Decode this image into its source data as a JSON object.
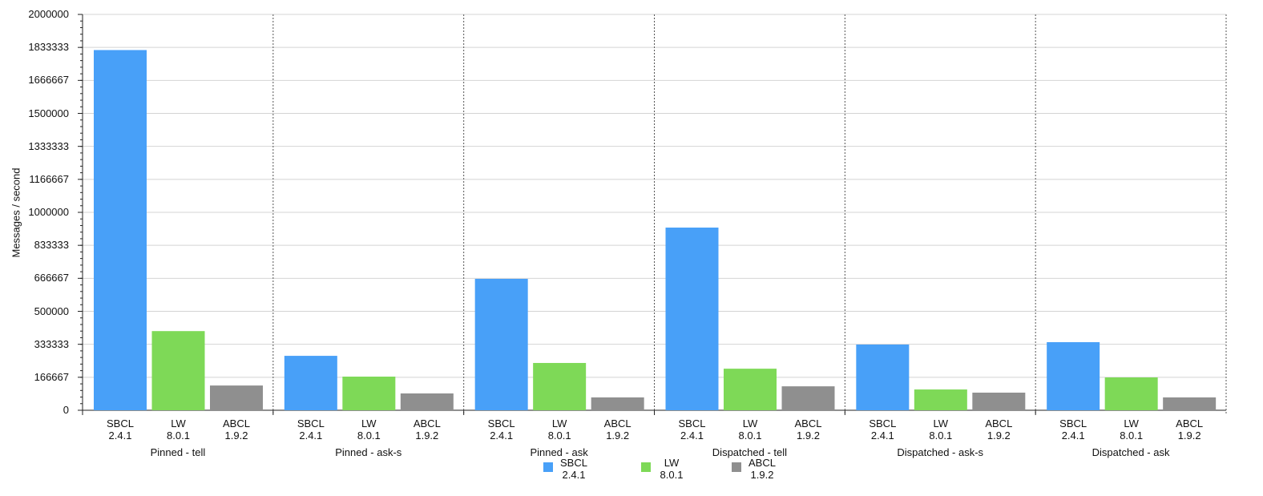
{
  "chart_data": {
    "type": "bar",
    "y_label": "Messages / second",
    "categories": [
      "Pinned - tell",
      "Pinned - ask-s",
      "Pinned - ask",
      "Dispatched - tell",
      "Dispatched - ask-s",
      "Dispatched - ask"
    ],
    "series": [
      {
        "name": "SBCL 2.4.1",
        "color": "#48a0f8",
        "values": [
          1820000,
          275000,
          664000,
          923000,
          332000,
          344000
        ]
      },
      {
        "name": "LW 8.0.1",
        "color": "#7ed957",
        "values": [
          400000,
          170000,
          239000,
          210000,
          105000,
          166000
        ]
      },
      {
        "name": "ABCL 1.9.2",
        "color": "#8f8f8f",
        "values": [
          125000,
          85000,
          65000,
          121000,
          89000,
          65000
        ]
      }
    ],
    "ylim": [
      0,
      2000000
    ],
    "yticks": [
      0,
      166667,
      333333,
      500000,
      666667,
      833333,
      1000000,
      1166667,
      1333333,
      1500000,
      1666667,
      1833333,
      2000000
    ],
    "grid": true
  }
}
